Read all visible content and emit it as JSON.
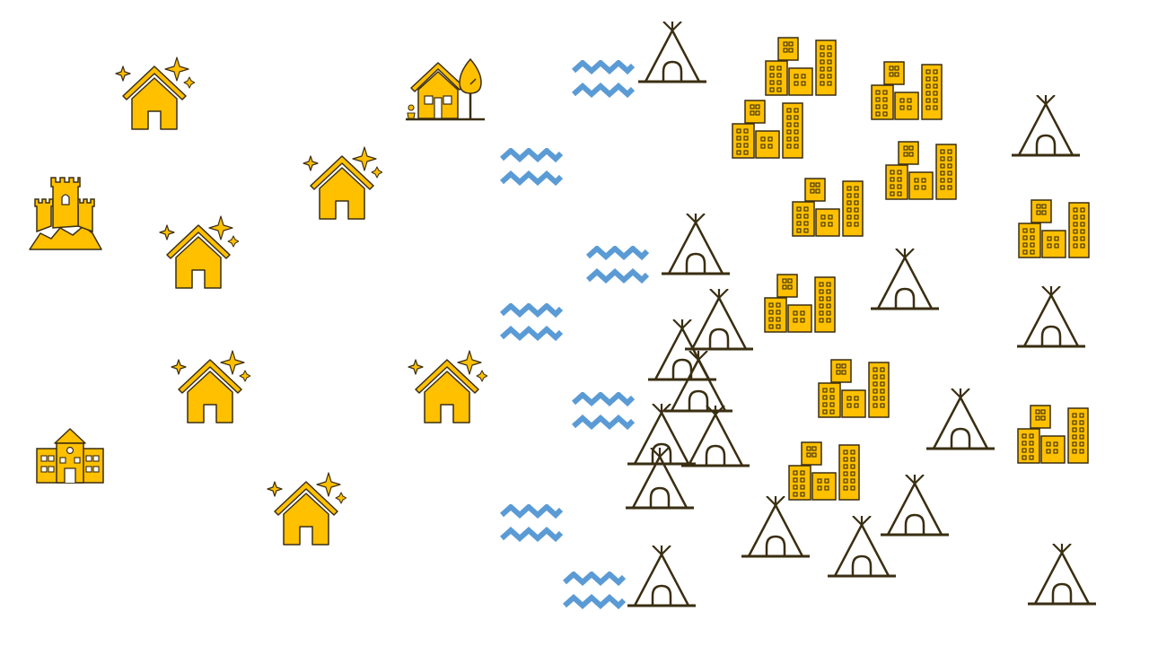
{
  "colors": {
    "gold": "#FFC000",
    "outline": "#3A2E12",
    "tent_line": "#3A2E12",
    "water": "#5B9BD5",
    "background": "#FFFFFF"
  },
  "icons": {
    "sparkle_house": "sparkle-house-icon",
    "castle": "castle-icon",
    "school": "school-icon",
    "cottage": "cottage-with-tree-icon",
    "water": "water-waves-icon",
    "tent": "tepee-tent-icon",
    "city": "city-buildings-icon"
  }
}
